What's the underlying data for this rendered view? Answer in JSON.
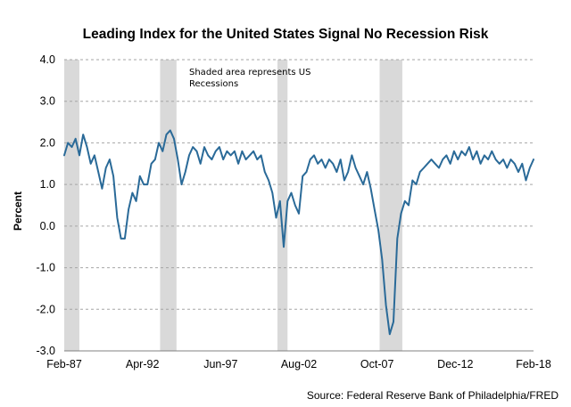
{
  "chart_data": {
    "type": "line",
    "title": "Leading Index for the United States Signal No Recession Risk",
    "ylabel": "Percent",
    "xlabel": "",
    "ylim": [
      -3.0,
      4.0
    ],
    "ytick_labels": [
      "4.0",
      "3.0",
      "2.0",
      "1.0",
      "0.0",
      "-1.0",
      "-2.0",
      "-3.0"
    ],
    "ytick_values": [
      4,
      3,
      2,
      1,
      0,
      -1,
      -2,
      -3
    ],
    "xlim": [
      "1987-02",
      "2018-02"
    ],
    "xtick_labels": [
      "Feb-87",
      "Apr-92",
      "Jun-97",
      "Aug-02",
      "Oct-07",
      "Dec-12",
      "Feb-18"
    ],
    "xtick_values": [
      "1987-02",
      "1992-04",
      "1997-06",
      "2002-08",
      "2007-10",
      "2012-12",
      "2018-02"
    ],
    "grid": "horizontal dashed",
    "annotation": "Shaded area represents US Recessions",
    "source": "Source: Federal Reserve Bank of Philadelphia/FRED",
    "colors": {
      "line": "#2a6a98",
      "recession_shade": "#d9d9d9",
      "grid": "#a6a6a6"
    },
    "recessions": [
      {
        "start": "1987-02",
        "end": "1988-02"
      },
      {
        "start": "1993-06",
        "end": "1994-07"
      },
      {
        "start": "2001-03",
        "end": "2001-11"
      },
      {
        "start": "2007-12",
        "end": "2009-06"
      }
    ],
    "series": [
      {
        "x": [
          "1987-02",
          "1987-05",
          "1987-08",
          "1987-11",
          "1988-02",
          "1988-05",
          "1988-08",
          "1988-11",
          "1989-02",
          "1989-05",
          "1989-08",
          "1989-11",
          "1990-02",
          "1990-05",
          "1990-08",
          "1990-11",
          "1991-02",
          "1991-05",
          "1991-08",
          "1991-11",
          "1992-02",
          "1992-05",
          "1992-08",
          "1992-11",
          "1993-02",
          "1993-05",
          "1993-08",
          "1993-11",
          "1994-02",
          "1994-05",
          "1994-08",
          "1994-11",
          "1995-02",
          "1995-05",
          "1995-08",
          "1995-11",
          "1996-02",
          "1996-05",
          "1996-08",
          "1996-11",
          "1997-02",
          "1997-05",
          "1997-08",
          "1997-11",
          "1998-02",
          "1998-05",
          "1998-08",
          "1998-11",
          "1999-02",
          "1999-05",
          "1999-08",
          "1999-11",
          "2000-02",
          "2000-05",
          "2000-08",
          "2000-11",
          "2001-02",
          "2001-05",
          "2001-08",
          "2001-11",
          "2002-02",
          "2002-05",
          "2002-08",
          "2002-11",
          "2003-02",
          "2003-05",
          "2003-08",
          "2003-11",
          "2004-02",
          "2004-05",
          "2004-08",
          "2004-11",
          "2005-02",
          "2005-05",
          "2005-08",
          "2005-11",
          "2006-02",
          "2006-05",
          "2006-08",
          "2006-11",
          "2007-02",
          "2007-05",
          "2007-08",
          "2007-11",
          "2008-02",
          "2008-05",
          "2008-08",
          "2008-11",
          "2009-02",
          "2009-05",
          "2009-08",
          "2009-11",
          "2010-02",
          "2010-05",
          "2010-08",
          "2010-11",
          "2011-02",
          "2011-05",
          "2011-08",
          "2011-11",
          "2012-02",
          "2012-05",
          "2012-08",
          "2012-11",
          "2013-02",
          "2013-05",
          "2013-08",
          "2013-11",
          "2014-02",
          "2014-05",
          "2014-08",
          "2014-11",
          "2015-02",
          "2015-05",
          "2015-08",
          "2015-11",
          "2016-02",
          "2016-05",
          "2016-08",
          "2016-11",
          "2017-02",
          "2017-05",
          "2017-08",
          "2017-11",
          "2018-02"
        ],
        "values": [
          1.7,
          2.0,
          1.9,
          2.1,
          1.7,
          2.2,
          1.9,
          1.5,
          1.7,
          1.3,
          0.9,
          1.4,
          1.6,
          1.2,
          0.2,
          -0.3,
          -0.3,
          0.4,
          0.8,
          0.6,
          1.2,
          1.0,
          1.0,
          1.5,
          1.6,
          2.0,
          1.8,
          2.2,
          2.3,
          2.1,
          1.6,
          1.0,
          1.3,
          1.7,
          1.9,
          1.8,
          1.5,
          1.9,
          1.7,
          1.6,
          1.8,
          1.9,
          1.6,
          1.8,
          1.7,
          1.8,
          1.5,
          1.8,
          1.6,
          1.7,
          1.8,
          1.6,
          1.7,
          1.3,
          1.1,
          0.8,
          0.2,
          0.6,
          -0.5,
          0.6,
          0.8,
          0.5,
          0.3,
          1.2,
          1.3,
          1.6,
          1.7,
          1.5,
          1.6,
          1.4,
          1.6,
          1.5,
          1.3,
          1.6,
          1.1,
          1.3,
          1.7,
          1.4,
          1.2,
          1.0,
          1.3,
          0.9,
          0.4,
          -0.1,
          -0.8,
          -1.9,
          -2.6,
          -2.3,
          -0.3,
          0.3,
          0.6,
          0.5,
          1.1,
          1.0,
          1.3,
          1.4,
          1.5,
          1.6,
          1.5,
          1.4,
          1.6,
          1.7,
          1.5,
          1.8,
          1.6,
          1.8,
          1.7,
          1.9,
          1.6,
          1.8,
          1.5,
          1.7,
          1.6,
          1.8,
          1.6,
          1.5,
          1.6,
          1.4,
          1.6,
          1.5,
          1.3,
          1.5,
          1.1,
          1.4,
          1.6
        ]
      }
    ]
  }
}
